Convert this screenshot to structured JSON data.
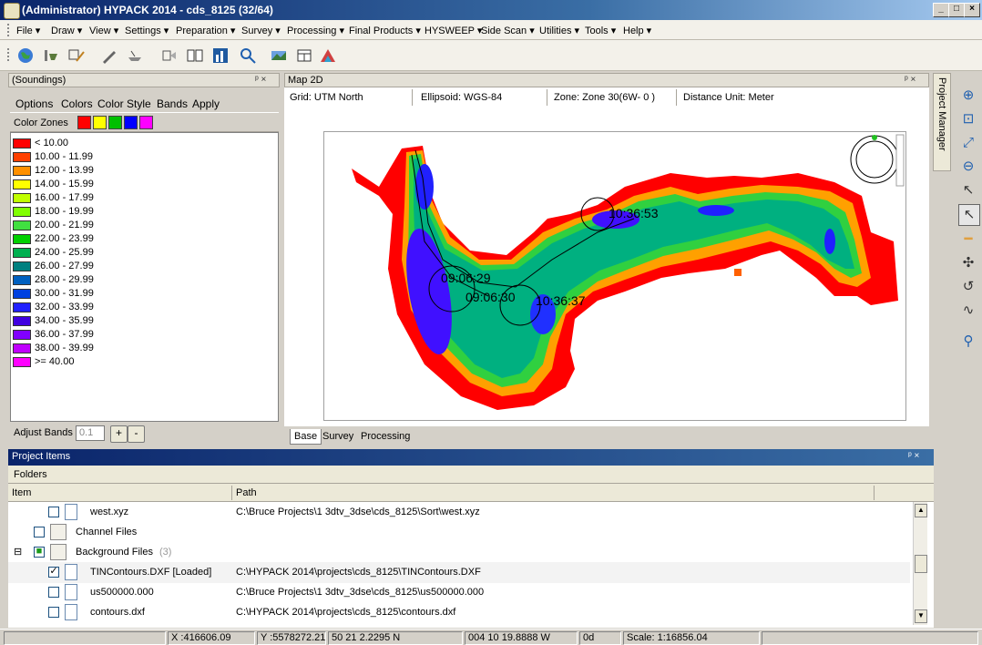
{
  "window": {
    "title": "(Administrator) HYPACK 2014 - cds_8125 (32/64)",
    "min": "_",
    "max": "□",
    "close": "×"
  },
  "menu": [
    "File ▾",
    "Draw ▾",
    "View ▾",
    "Settings ▾",
    "Preparation ▾",
    "Survey ▾",
    "Processing ▾",
    "Final Products ▾",
    "HYSWEEP ▾",
    "Side Scan ▾",
    "Utilities ▾",
    "Tools ▾",
    "Help ▾"
  ],
  "soundings": {
    "header": "(Soundings)",
    "pin": "ᵖ ×",
    "menu": [
      "Options",
      "Colors",
      "Color Style",
      "Bands",
      "Apply"
    ],
    "color_zones_label": "Color Zones",
    "top_swatches": [
      "#ff0000",
      "#ffff00",
      "#00c000",
      "#0000ff",
      "#ff00ff"
    ],
    "bands": [
      {
        "label": "< 10.00",
        "color": "#ff0000"
      },
      {
        "label": "10.00 - 11.99",
        "color": "#ff4000"
      },
      {
        "label": "12.00 - 13.99",
        "color": "#ff9000"
      },
      {
        "label": "14.00 - 15.99",
        "color": "#ffff00"
      },
      {
        "label": "16.00 - 17.99",
        "color": "#c0ff00"
      },
      {
        "label": "18.00 - 19.99",
        "color": "#80ff00"
      },
      {
        "label": "20.00 - 21.99",
        "color": "#40e040"
      },
      {
        "label": "22.00 - 23.99",
        "color": "#00d000"
      },
      {
        "label": "24.00 - 25.99",
        "color": "#00b050"
      },
      {
        "label": "26.00 - 27.99",
        "color": "#008080"
      },
      {
        "label": "28.00 - 29.99",
        "color": "#0060c0"
      },
      {
        "label": "30.00 - 31.99",
        "color": "#0040e0"
      },
      {
        "label": "32.00 - 33.99",
        "color": "#2020ff"
      },
      {
        "label": "34.00 - 35.99",
        "color": "#4000e0"
      },
      {
        "label": "36.00 - 37.99",
        "color": "#8000ff"
      },
      {
        "label": "38.00 - 39.99",
        "color": "#c000ff"
      },
      {
        "label": ">= 40.00",
        "color": "#ff00ff"
      }
    ],
    "adjust_label": "Adjust Bands",
    "adjust_value": "0.1",
    "plus": "+",
    "minus": "-"
  },
  "map": {
    "header": "Map 2D",
    "pin": "ᵖ ×",
    "grid": "Grid: UTM North",
    "ellipsoid": "Ellipsoid: WGS-84",
    "zone": "Zone: Zone 30(6W- 0 )",
    "distance_unit": "Distance Unit: Meter",
    "labels": [
      "09:06:29",
      "09:06:30",
      "10:36:37",
      "10:36:53"
    ],
    "tabs": [
      "Base",
      "Survey",
      "Processing"
    ]
  },
  "right": {
    "project_manager": "Project Manager"
  },
  "project_items": {
    "header": "Project Items",
    "pin": "ᵖ ×",
    "folders": "Folders",
    "col_item": "Item",
    "col_path": "Path",
    "rows": [
      {
        "name": "west.xyz",
        "path": "C:\\Bruce Projects\\1 3dtv_3dse\\cds_8125\\Sort\\west.xyz",
        "checked": ""
      },
      {
        "name": "Channel Files",
        "path": "",
        "checked": ""
      },
      {
        "name": "Background Files",
        "count": "(3)",
        "path": "",
        "checked": "■"
      },
      {
        "name": "TINContours.DXF [Loaded]",
        "path": "C:\\HYPACK 2014\\projects\\cds_8125\\TINContours.DXF",
        "checked": "✓"
      },
      {
        "name": "us500000.000",
        "path": "C:\\Bruce Projects\\1 3dtv_3dse\\cds_8125\\us500000.000",
        "checked": ""
      },
      {
        "name": "contours.dxf",
        "path": "C:\\HYPACK 2014\\projects\\cds_8125\\contours.dxf",
        "checked": ""
      }
    ]
  },
  "status": {
    "x": "X :416606.09",
    "y": "Y :5578272.21",
    "lat": "50 21 2.2295 N",
    "lon": "004 10 19.8888 W",
    "heading": "0d",
    "scale": "Scale: 1:16856.04"
  }
}
